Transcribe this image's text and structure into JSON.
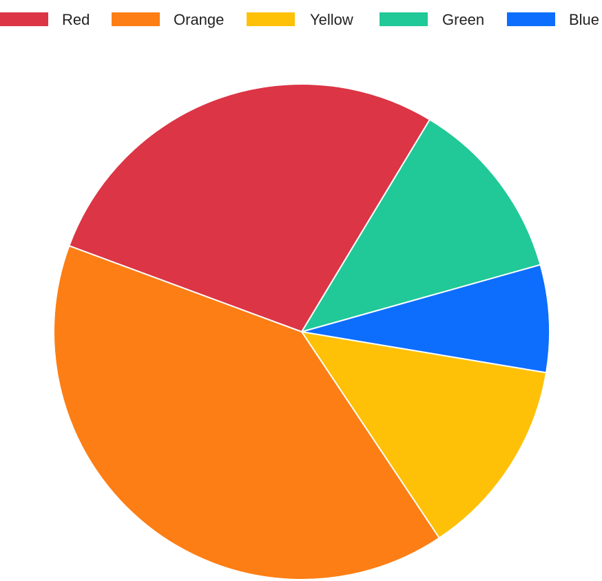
{
  "chart_data": {
    "type": "pie",
    "title": "",
    "legend_position": "top",
    "slices": [
      {
        "label": "Red",
        "value": 28,
        "color": "#dc3545"
      },
      {
        "label": "Green",
        "value": 12,
        "color": "#20c997"
      },
      {
        "label": "Blue",
        "value": 7,
        "color": "#0d6efd"
      },
      {
        "label": "Yellow",
        "value": 13,
        "color": "#ffc107"
      },
      {
        "label": "Orange",
        "value": 40,
        "color": "#fd7e14"
      }
    ],
    "legend": [
      {
        "label": "Red",
        "color": "#dc3545"
      },
      {
        "label": "Orange",
        "color": "#fd7e14"
      },
      {
        "label": "Yellow",
        "color": "#ffc107"
      },
      {
        "label": "Green",
        "color": "#20c997"
      },
      {
        "label": "Blue",
        "color": "#0d6efd"
      }
    ]
  }
}
